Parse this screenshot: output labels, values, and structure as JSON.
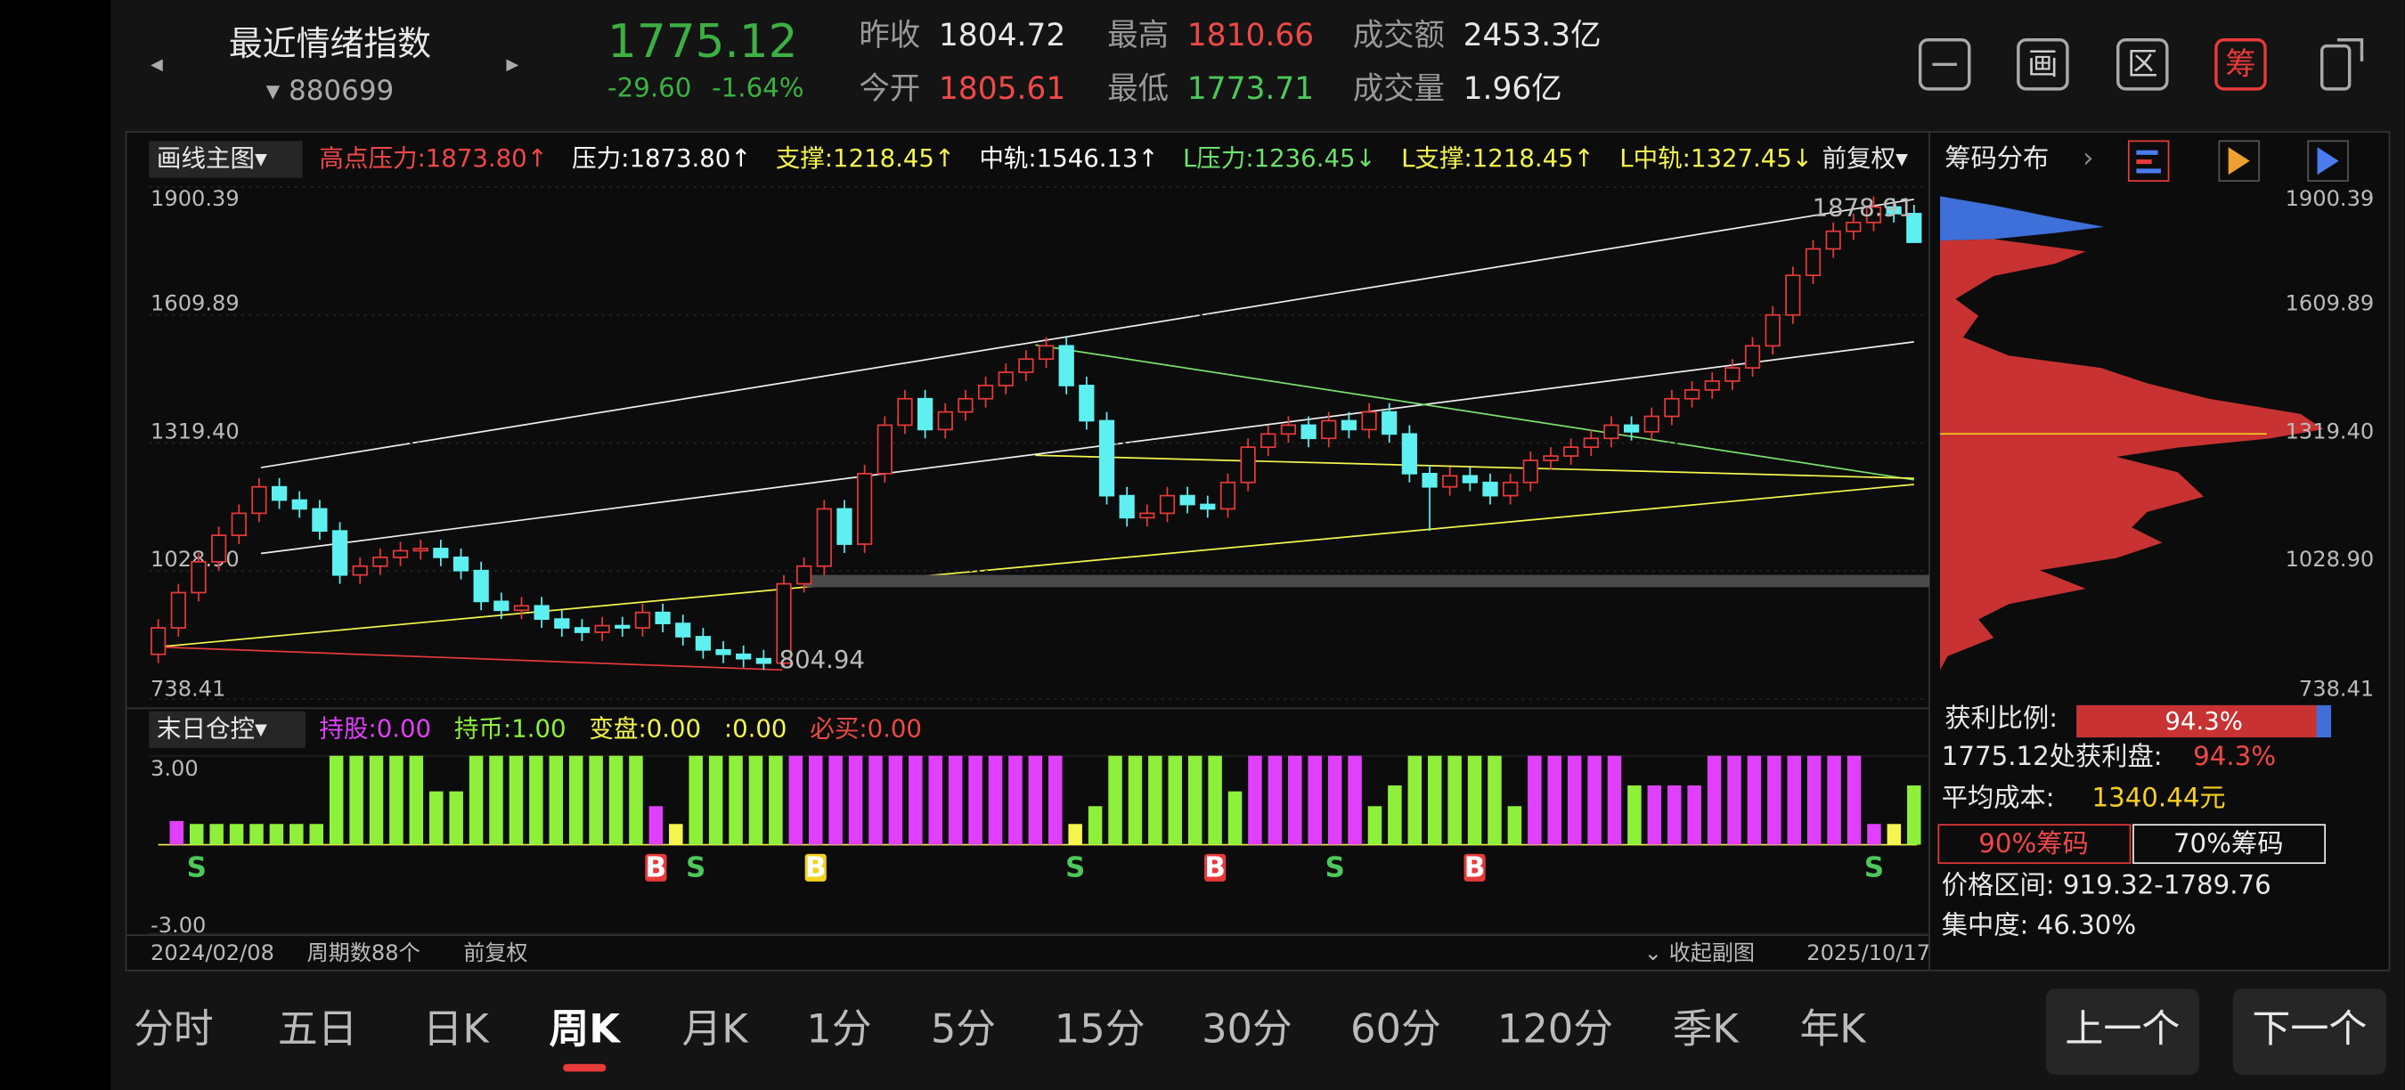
{
  "header": {
    "name": "最近情绪指数",
    "code": "▾ 880699",
    "price": "1775.12",
    "change": "-29.60",
    "change_pct": "-1.64%",
    "stats": [
      {
        "label": "昨收",
        "value": "1804.72",
        "color": "#e8e8e8"
      },
      {
        "label": "今开",
        "value": "1805.61",
        "color": "#f04848"
      },
      {
        "label": "最高",
        "value": "1810.66",
        "color": "#f04848"
      },
      {
        "label": "最低",
        "value": "1773.71",
        "color": "#4cc85a"
      },
      {
        "label": "成交额",
        "value": "2453.3亿",
        "color": "#e8e8e8"
      },
      {
        "label": "成交量",
        "value": "1.96亿",
        "color": "#e8e8e8"
      }
    ]
  },
  "toolbar": [
    "画",
    "区",
    "筹"
  ],
  "main_menu": "画线主图▾",
  "indicators": [
    {
      "text": "高点压力:1873.80↑",
      "color": "#f04848"
    },
    {
      "text": "压力:1873.80↑",
      "color": "#ffffff"
    },
    {
      "text": "支撑:1218.45↑",
      "color": "#f5f550"
    },
    {
      "text": "中轨:1546.13↑",
      "color": "#ffffff"
    },
    {
      "text": "L压力:1236.45↓",
      "color": "#6ee06e"
    },
    {
      "text": "L支撑:1218.45↑",
      "color": "#f5f550"
    },
    {
      "text": "L中轨:1327.45↓",
      "color": "#f5f550"
    }
  ],
  "adjust": "前复权▾",
  "chart_data": {
    "type": "candlestick",
    "up_color": "#e83a3a",
    "down_color": "#5ef0f0",
    "ylim": [
      738.41,
      1900.39
    ],
    "yticks": [
      {
        "value": 1900.39,
        "label": "1900.39"
      },
      {
        "value": 1609.89,
        "label": "1609.89"
      },
      {
        "value": 1319.4,
        "label": "1319.40"
      },
      {
        "value": 1028.9,
        "label": "1028.90"
      },
      {
        "value": 738.41,
        "label": "738.41"
      }
    ],
    "open": [
      840,
      900,
      980,
      1050,
      1110,
      1160,
      1220,
      1190,
      1170,
      1120,
      1020,
      1040,
      1060,
      1075,
      1080,
      1060,
      1030,
      960,
      940,
      950,
      920,
      900,
      890,
      905,
      900,
      935,
      910,
      880,
      850,
      840,
      830,
      820,
      1000,
      1040,
      1170,
      1090,
      1250,
      1360,
      1420,
      1350,
      1390,
      1420,
      1450,
      1480,
      1510,
      1540,
      1450,
      1370,
      1200,
      1150,
      1160,
      1200,
      1180,
      1170,
      1230,
      1310,
      1340,
      1360,
      1330,
      1370,
      1350,
      1390,
      1340,
      1250,
      1220,
      1245,
      1230,
      1200,
      1230,
      1280,
      1290,
      1310,
      1330,
      1360,
      1345,
      1380,
      1420,
      1440,
      1460,
      1490,
      1540,
      1610,
      1700,
      1760,
      1800,
      1820,
      1855,
      1840
    ],
    "high": [
      920,
      1000,
      1070,
      1130,
      1180,
      1240,
      1240,
      1210,
      1190,
      1140,
      1060,
      1080,
      1095,
      1100,
      1100,
      1080,
      1050,
      980,
      970,
      970,
      940,
      920,
      925,
      925,
      955,
      955,
      930,
      900,
      870,
      860,
      850,
      1020,
      1060,
      1190,
      1190,
      1270,
      1380,
      1440,
      1440,
      1410,
      1440,
      1470,
      1500,
      1530,
      1560,
      1560,
      1470,
      1390,
      1220,
      1180,
      1220,
      1220,
      1200,
      1250,
      1330,
      1360,
      1380,
      1380,
      1390,
      1390,
      1410,
      1410,
      1360,
      1270,
      1265,
      1265,
      1250,
      1250,
      1300,
      1310,
      1330,
      1350,
      1380,
      1380,
      1400,
      1440,
      1460,
      1480,
      1510,
      1560,
      1630,
      1720,
      1780,
      1820,
      1840,
      1878.91,
      1875,
      1860
    ],
    "low": [
      820,
      880,
      960,
      1030,
      1090,
      1140,
      1170,
      1150,
      1100,
      1000,
      1000,
      1020,
      1040,
      1055,
      1040,
      1010,
      940,
      920,
      920,
      900,
      880,
      870,
      870,
      880,
      880,
      890,
      860,
      830,
      820,
      810,
      804.94,
      810,
      980,
      1020,
      1070,
      1070,
      1230,
      1340,
      1330,
      1330,
      1370,
      1400,
      1430,
      1460,
      1490,
      1430,
      1350,
      1180,
      1130,
      1130,
      1140,
      1160,
      1150,
      1150,
      1210,
      1290,
      1320,
      1310,
      1310,
      1330,
      1330,
      1320,
      1230,
      1120,
      1200,
      1210,
      1180,
      1180,
      1210,
      1260,
      1270,
      1290,
      1310,
      1325,
      1325,
      1360,
      1400,
      1420,
      1440,
      1470,
      1520,
      1590,
      1680,
      1740,
      1780,
      1800,
      1820,
      1773.71
    ],
    "close": [
      900,
      980,
      1050,
      1110,
      1160,
      1220,
      1190,
      1170,
      1120,
      1020,
      1040,
      1060,
      1075,
      1080,
      1060,
      1030,
      960,
      940,
      950,
      920,
      900,
      890,
      905,
      900,
      935,
      910,
      880,
      850,
      840,
      830,
      820,
      1000,
      1040,
      1170,
      1090,
      1250,
      1360,
      1420,
      1350,
      1390,
      1420,
      1450,
      1480,
      1510,
      1540,
      1450,
      1370,
      1200,
      1150,
      1160,
      1200,
      1180,
      1170,
      1230,
      1310,
      1340,
      1360,
      1330,
      1370,
      1350,
      1390,
      1340,
      1250,
      1220,
      1245,
      1230,
      1200,
      1230,
      1280,
      1290,
      1310,
      1330,
      1360,
      1345,
      1380,
      1420,
      1440,
      1460,
      1490,
      1540,
      1610,
      1700,
      1760,
      1800,
      1820,
      1855,
      1840,
      1775.12
    ],
    "annotations": [
      {
        "text": "1878.91",
        "index": 85,
        "field": "high"
      },
      {
        "text": "804.94",
        "index": 30,
        "field": "low"
      }
    ]
  },
  "indicator_chart": {
    "type": "bar",
    "menu": "末日仓控▾",
    "labels": [
      {
        "text": "持股:0.00",
        "color": "#e040fb"
      },
      {
        "text": "持币:1.00",
        "color": "#8ef03a"
      },
      {
        "text": "变盘:0.00",
        "color": "#f5f550"
      },
      {
        "text": ":0.00",
        "color": "#f5f550"
      },
      {
        "text": "必买:0.00",
        "color": "#f04848"
      }
    ],
    "ylim": [
      -3,
      3
    ],
    "yticks": [
      {
        "value": 3,
        "label": "3.00"
      },
      {
        "value": -3,
        "label": "-3.00"
      }
    ],
    "values": [
      0.8,
      0.7,
      0.7,
      0.7,
      0.7,
      0.7,
      0.7,
      0.7,
      3,
      3,
      3,
      3,
      3,
      1.8,
      1.8,
      3,
      3,
      3,
      3,
      3,
      3,
      3,
      3,
      3,
      1.3,
      0.7,
      3,
      3,
      3,
      3,
      3,
      3,
      3,
      3,
      3,
      3,
      3,
      3,
      3,
      3,
      3,
      3,
      3,
      3,
      3,
      0.7,
      1.3,
      3,
      3,
      3,
      3,
      3,
      3,
      1.8,
      3,
      3,
      3,
      3,
      3,
      3,
      1.3,
      2,
      3,
      3,
      3,
      3,
      3,
      1.3,
      3,
      3,
      3,
      3,
      3,
      2,
      2,
      2,
      2,
      3,
      3,
      3,
      3,
      3,
      3,
      3,
      3,
      0.7,
      0.7,
      2
    ],
    "colors": [
      "#e040fb",
      "#8ef03a",
      "#8ef03a",
      "#8ef03a",
      "#8ef03a",
      "#8ef03a",
      "#8ef03a",
      "#8ef03a",
      "#8ef03a",
      "#8ef03a",
      "#8ef03a",
      "#8ef03a",
      "#8ef03a",
      "#8ef03a",
      "#8ef03a",
      "#8ef03a",
      "#8ef03a",
      "#8ef03a",
      "#8ef03a",
      "#8ef03a",
      "#8ef03a",
      "#8ef03a",
      "#8ef03a",
      "#8ef03a",
      "#e040fb",
      "#f5f550",
      "#8ef03a",
      "#8ef03a",
      "#8ef03a",
      "#8ef03a",
      "#8ef03a",
      "#e040fb",
      "#e040fb",
      "#e040fb",
      "#e040fb",
      "#e040fb",
      "#e040fb",
      "#e040fb",
      "#e040fb",
      "#e040fb",
      "#e040fb",
      "#e040fb",
      "#e040fb",
      "#e040fb",
      "#e040fb",
      "#f5f550",
      "#8ef03a",
      "#8ef03a",
      "#8ef03a",
      "#8ef03a",
      "#8ef03a",
      "#8ef03a",
      "#8ef03a",
      "#8ef03a",
      "#e040fb",
      "#e040fb",
      "#e040fb",
      "#e040fb",
      "#e040fb",
      "#e040fb",
      "#8ef03a",
      "#8ef03a",
      "#8ef03a",
      "#8ef03a",
      "#8ef03a",
      "#8ef03a",
      "#8ef03a",
      "#8ef03a",
      "#e040fb",
      "#e040fb",
      "#e040fb",
      "#e040fb",
      "#e040fb",
      "#8ef03a",
      "#e040fb",
      "#e040fb",
      "#e040fb",
      "#e040fb",
      "#e040fb",
      "#e040fb",
      "#e040fb",
      "#e040fb",
      "#e040fb",
      "#e040fb",
      "#e040fb",
      "#e040fb",
      "#f5f550",
      "#8ef03a"
    ],
    "signals": [
      {
        "index": 1,
        "label": "S",
        "color": "#4cc85a"
      },
      {
        "index": 24,
        "label": "B",
        "color": "#e83a3a"
      },
      {
        "index": 26,
        "label": "S",
        "color": "#4cc85a"
      },
      {
        "index": 32,
        "label": "B",
        "color": "#f5d020"
      },
      {
        "index": 45,
        "label": "S",
        "color": "#4cc85a"
      },
      {
        "index": 52,
        "label": "B",
        "color": "#e83a3a"
      },
      {
        "index": 58,
        "label": "S",
        "color": "#4cc85a"
      },
      {
        "index": 65,
        "label": "B",
        "color": "#e83a3a"
      },
      {
        "index": 85,
        "label": "S",
        "color": "#4cc85a"
      }
    ]
  },
  "footer": {
    "start": "2024/02/08",
    "periods": "周期数88个",
    "adjust": "前复权",
    "collapse": "⌄ 收起副图",
    "end": "2025/10/17"
  },
  "chip": {
    "title": "筹码分布",
    "profit_label": "获利比例:",
    "profit_ratio": {
      "value": 94.3,
      "label": "94.3%"
    },
    "profit_at": "1775.12处获利盘:",
    "profit_at_value": "94.3%",
    "avg_label": "平均成本:",
    "avg_value": "1340.44元",
    "btn90": "90%筹码",
    "btn70": "70%筹码",
    "range": "价格区间: 919.32-1789.76",
    "concentration": "集中度: 46.30%"
  },
  "tabs": [
    "分时",
    "五日",
    "日K",
    "周K",
    "月K",
    "1分",
    "5分",
    "15分",
    "30分",
    "60分",
    "120分",
    "季K",
    "年K"
  ],
  "selected_tab": 3,
  "buttons": [
    "上一个",
    "下一个"
  ]
}
